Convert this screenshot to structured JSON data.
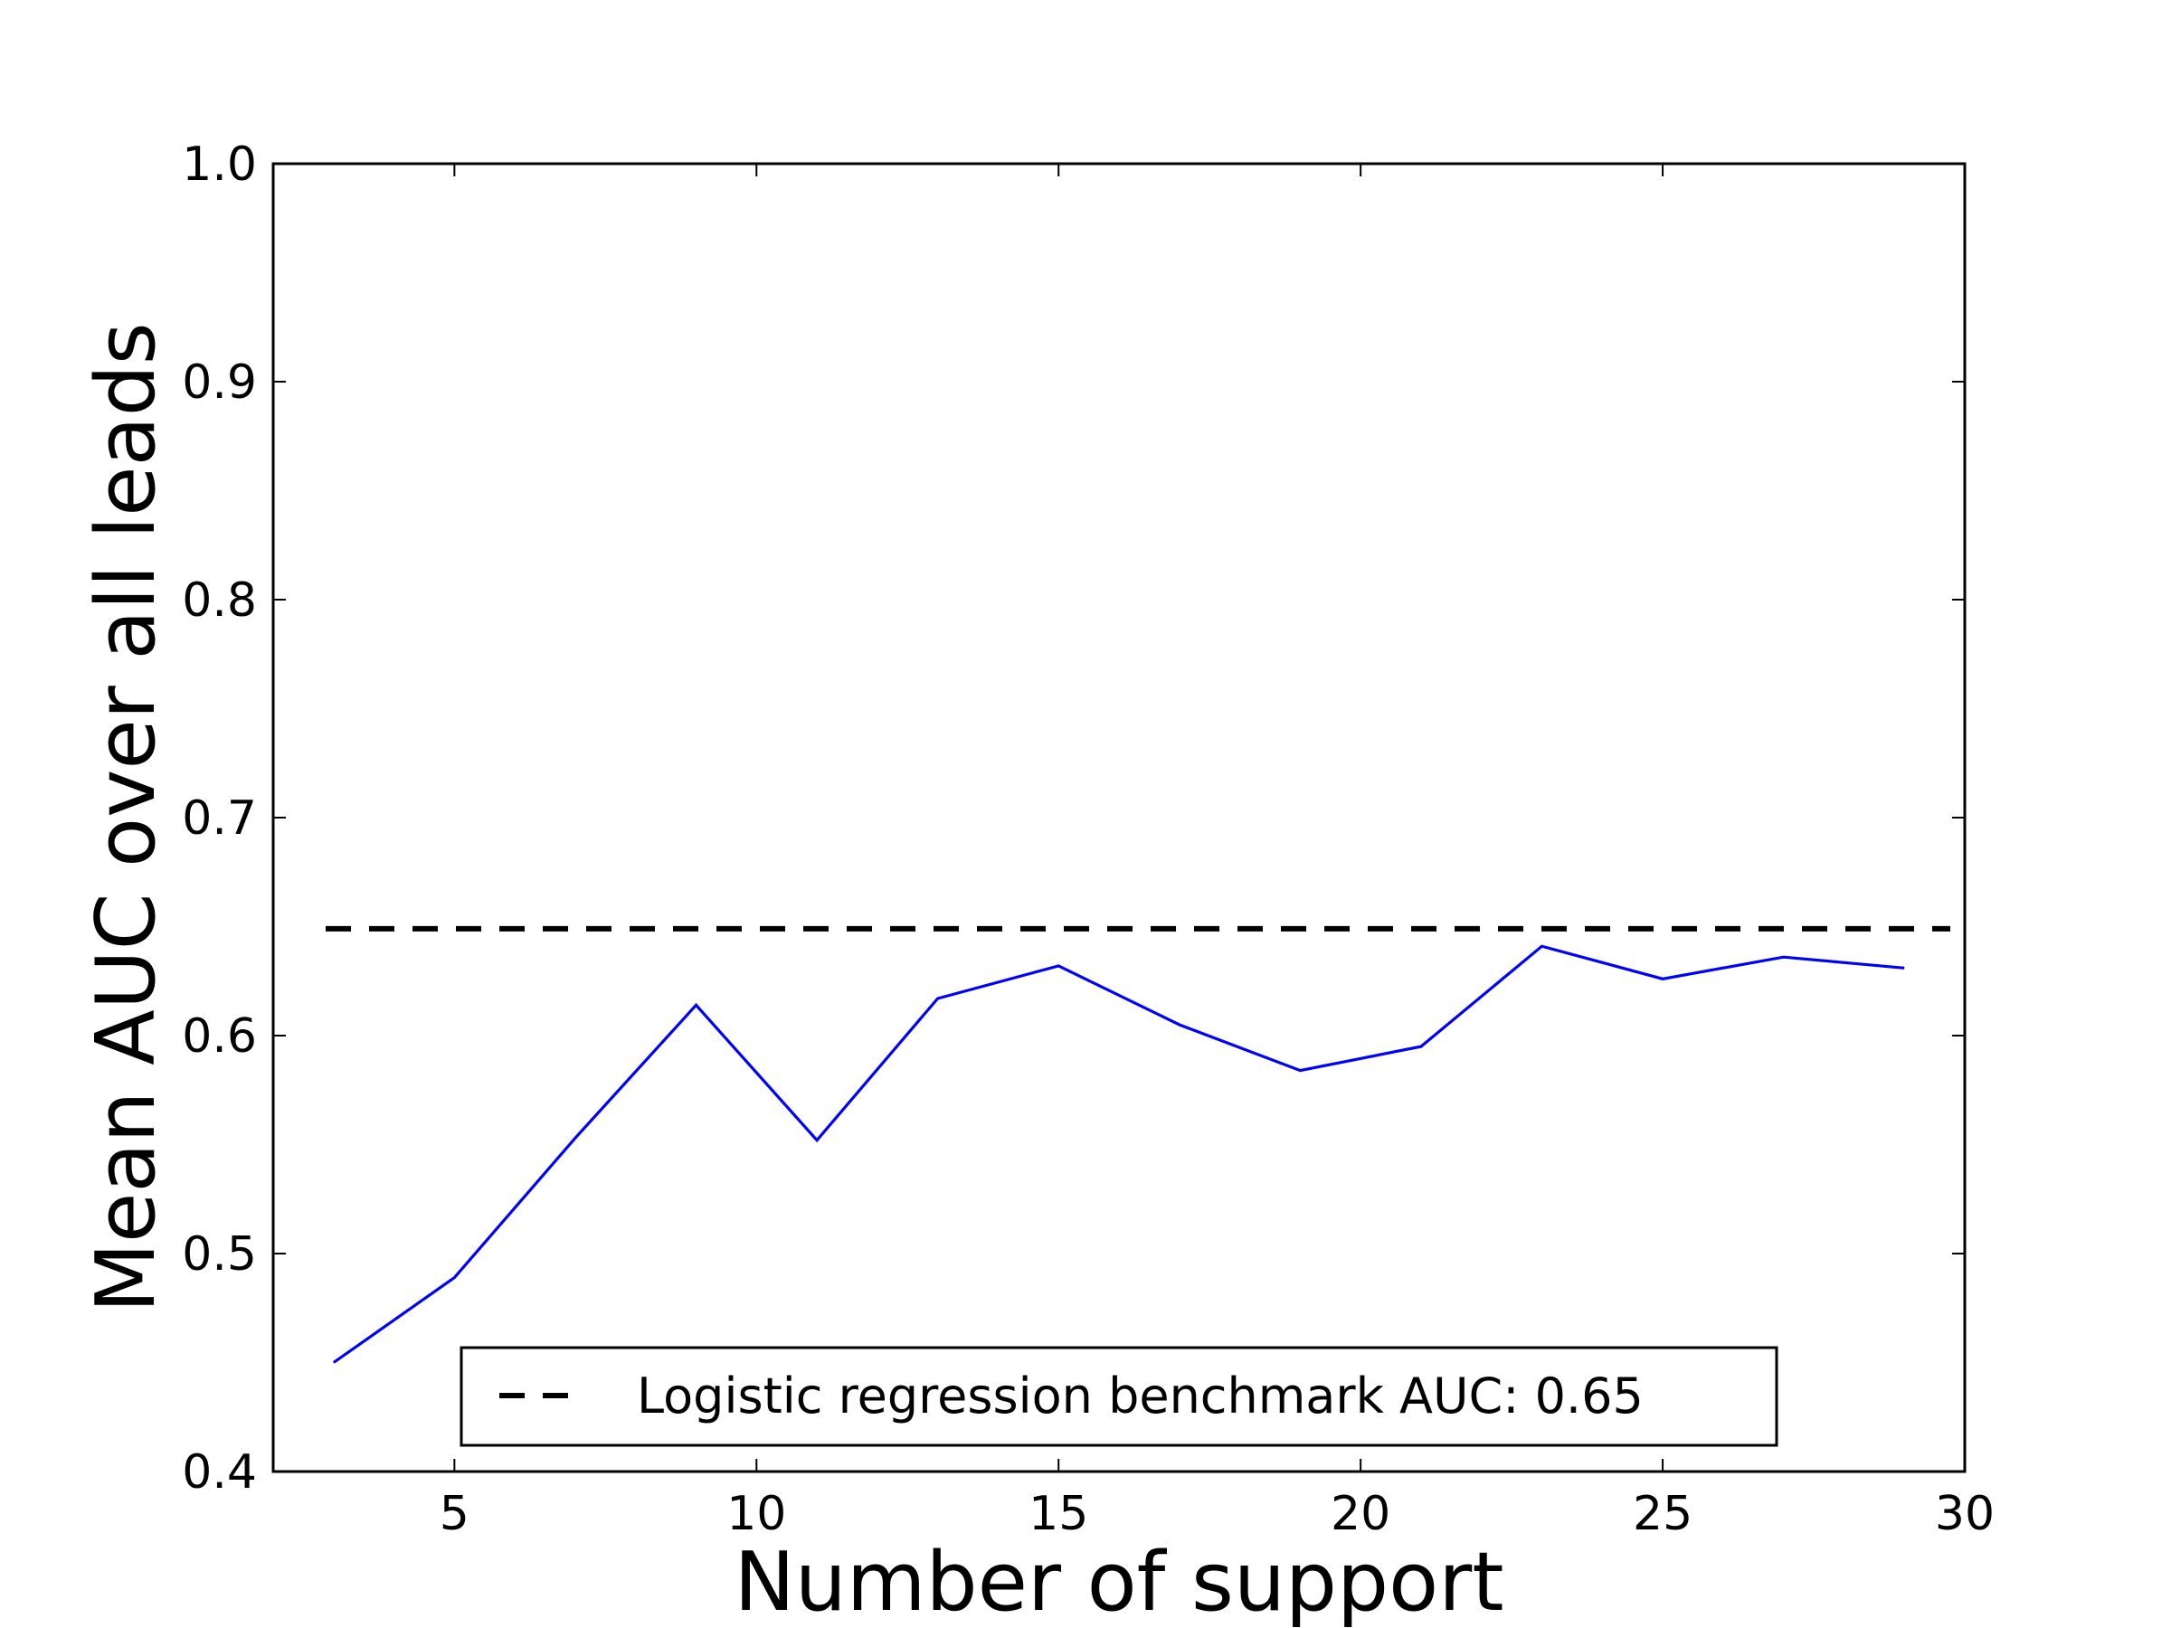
{
  "chart_data": {
    "type": "line",
    "xlabel": "Number of support",
    "ylabel": "Mean AUC over all leads",
    "xlim": [
      2,
      30
    ],
    "ylim": [
      0.4,
      1.0
    ],
    "x_ticks": [
      5,
      10,
      15,
      20,
      25,
      30
    ],
    "x_tick_labels": [
      "5",
      "10",
      "15",
      "20",
      "25",
      "30"
    ],
    "y_ticks": [
      0.4,
      0.5,
      0.6,
      0.7,
      0.8,
      0.9,
      1.0
    ],
    "y_tick_labels": [
      "0.4",
      "0.5",
      "0.6",
      "0.7",
      "0.8",
      "0.9",
      "1.0"
    ],
    "grid": false,
    "series": [
      {
        "x": [
          3,
          5,
          7,
          9,
          11,
          13,
          15,
          17,
          19,
          21,
          23,
          25,
          27,
          29
        ],
        "values": [
          0.45,
          0.489,
          0.553,
          0.614,
          0.552,
          0.617,
          0.632,
          0.605,
          0.584,
          0.595,
          0.641,
          0.626,
          0.636,
          0.631
        ],
        "color": "#0000ff",
        "style": "solid"
      }
    ],
    "reference_lines": [
      {
        "y": 0.649,
        "style": "dashed",
        "color": "#000000"
      }
    ],
    "legend": {
      "placement": "lower-center",
      "entries": [
        {
          "label": "Logistic regression benchmark AUC: 0.65",
          "style": "dashed",
          "color": "#000000"
        }
      ]
    }
  }
}
